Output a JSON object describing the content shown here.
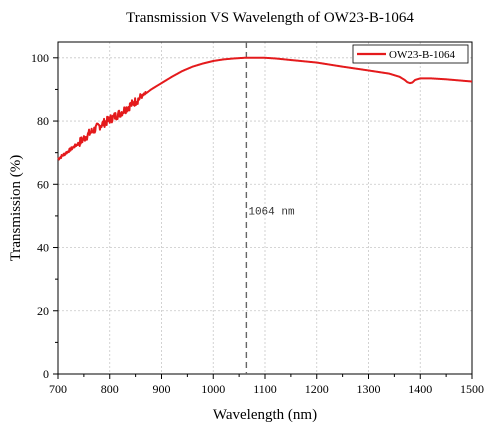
{
  "chart_data": {
    "type": "line",
    "title": "Transmission VS Wavelength of OW23-B-1064",
    "xlabel": "Wavelength (nm)",
    "ylabel": "Transmission (%)",
    "xlim": [
      700,
      1500
    ],
    "ylim": [
      0,
      105
    ],
    "xticks": [
      700,
      800,
      900,
      1000,
      1100,
      1200,
      1300,
      1400,
      1500
    ],
    "yticks": [
      0,
      20,
      40,
      60,
      80,
      100
    ],
    "grid": true,
    "legend": {
      "position": "top-right",
      "entries": [
        "OW23-B-1064"
      ]
    },
    "series": [
      {
        "name": "OW23-B-1064",
        "color": "#e41a1c",
        "x": [
          700,
          720,
          740,
          760,
          780,
          800,
          820,
          840,
          860,
          880,
          900,
          920,
          940,
          960,
          980,
          1000,
          1020,
          1040,
          1060,
          1080,
          1100,
          1120,
          1150,
          1200,
          1250,
          1300,
          1340,
          1360,
          1370,
          1375,
          1380,
          1385,
          1390,
          1400,
          1420,
          1450,
          1500
        ],
        "y": [
          68.0,
          70.5,
          73.0,
          76.0,
          78.5,
          80.5,
          82.5,
          85.0,
          87.5,
          90.0,
          92.0,
          94.0,
          95.8,
          97.2,
          98.2,
          99.0,
          99.5,
          99.8,
          100.0,
          100.0,
          100.0,
          99.8,
          99.3,
          98.5,
          97.2,
          96.0,
          95.0,
          94.0,
          93.0,
          92.3,
          92.0,
          92.2,
          93.0,
          93.5,
          93.5,
          93.2,
          92.5
        ]
      }
    ],
    "annotations": [
      {
        "type": "vline",
        "x": 1064,
        "label": "1064 nm",
        "color": "#666666"
      }
    ]
  }
}
